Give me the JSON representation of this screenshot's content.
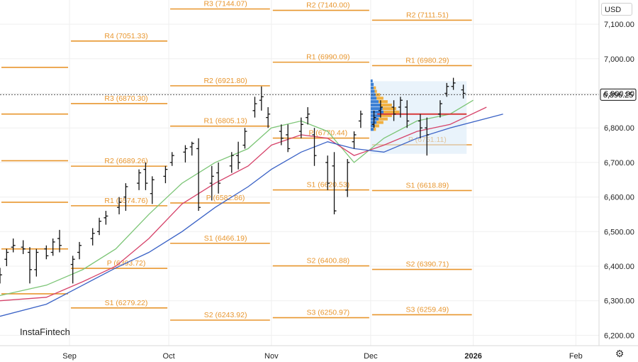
{
  "currency_label": "USD",
  "brand": "InstaFintech",
  "settings_icon": "settings-icon",
  "colors": {
    "pivot": "#e8962e",
    "ema_fast": "#7cc576",
    "ema_mid": "#d6436a",
    "ema_slow": "#3a62c6",
    "poc": "#d73b3b",
    "profile_blue": "#3b7fd4",
    "profile_orange": "#f0b040",
    "value_area": "#d7e9f7"
  },
  "chart_data": {
    "type": "line",
    "title": "",
    "ylim": [
      6170,
      7170
    ],
    "y_ticks": [
      "7,100.00",
      "7,000.00",
      "6,900.00",
      "6,800.00",
      "6,700.00",
      "6,600.00",
      "6,500.00",
      "6,400.00",
      "6,300.00",
      "6,200.00"
    ],
    "y_tick_values": [
      7100,
      7000,
      6900,
      6800,
      6700,
      6600,
      6500,
      6400,
      6300,
      6200
    ],
    "x_ticks": [
      "Sep",
      "Oct",
      "Nov",
      "Dec",
      "2026",
      "Feb"
    ],
    "x_tick_dates": [
      "2025-09-01",
      "2025-10-01",
      "2025-11-01",
      "2025-12-01",
      "2026-01-01",
      "2026-02-01"
    ],
    "xlim": [
      "2025-08-11",
      "2026-02-08"
    ],
    "last_price": "6,896.25",
    "last_price_value": 6896.25,
    "pivot_periods": [
      {
        "from": "2025-08-11",
        "to": "2025-09-01",
        "levels": [
          {
            "label": "",
            "value": 6975
          },
          {
            "label": "",
            "value": 6840
          },
          {
            "label": "",
            "value": 6705
          },
          {
            "label": "",
            "value": 6585
          },
          {
            "label": "",
            "value": 6450
          },
          {
            "label": "",
            "value": 6320
          }
        ]
      },
      {
        "from": "2025-09-01",
        "to": "2025-10-01",
        "levels": [
          {
            "label": "R4 (7051.33)",
            "value": 7051.33
          },
          {
            "label": "R3 (6870.30)",
            "value": 6870.3
          },
          {
            "label": "R2 (6689.26)",
            "value": 6689.26
          },
          {
            "label": "R1 (6574.76)",
            "value": 6574.76
          },
          {
            "label": "P (6393.72)",
            "value": 6393.72
          },
          {
            "label": "S1 (6279.22)",
            "value": 6279.22
          }
        ]
      },
      {
        "from": "2025-10-01",
        "to": "2025-11-01",
        "levels": [
          {
            "label": "R3 (7144.07)",
            "value": 7144.07
          },
          {
            "label": "R2 (6921.80)",
            "value": 6921.8
          },
          {
            "label": "R1 (6805.13)",
            "value": 6805.13
          },
          {
            "label": "P (6582.86)",
            "value": 6582.86
          },
          {
            "label": "S1 (6466.19)",
            "value": 6466.19
          },
          {
            "label": "S2 (6243.92)",
            "value": 6243.92
          }
        ]
      },
      {
        "from": "2025-11-01",
        "to": "2025-12-01",
        "levels": [
          {
            "label": "R2 (7140.00)",
            "value": 7140.0
          },
          {
            "label": "R1 (6990.09)",
            "value": 6990.09
          },
          {
            "label": "P (6770.44)",
            "value": 6770.44
          },
          {
            "label": "S1 (6620.53)",
            "value": 6620.53
          },
          {
            "label": "S2 (6400.88)",
            "value": 6400.88
          },
          {
            "label": "S3 (6250.97)",
            "value": 6250.97
          }
        ]
      },
      {
        "from": "2025-12-01",
        "to": "2026-01-01",
        "levels": [
          {
            "label": "R2 (7111.51)",
            "value": 7111.51
          },
          {
            "label": "R1 (6980.29)",
            "value": 6980.29
          },
          {
            "label": "P (6751.11)",
            "value": 6751.11
          },
          {
            "label": "S1 (6618.89)",
            "value": 6618.89
          },
          {
            "label": "S2 (6390.71)",
            "value": 6390.71
          },
          {
            "label": "S3 (6259.49)",
            "value": 6259.49
          }
        ]
      }
    ],
    "ohlc": [
      {
        "date": "2025-08-11",
        "o": 6365,
        "h": 6395,
        "l": 6350,
        "c": 6375
      },
      {
        "date": "2025-08-13",
        "o": 6420,
        "h": 6450,
        "l": 6400,
        "c": 6440
      },
      {
        "date": "2025-08-15",
        "o": 6455,
        "h": 6480,
        "l": 6440,
        "c": 6460
      },
      {
        "date": "2025-08-18",
        "o": 6455,
        "h": 6475,
        "l": 6435,
        "c": 6450
      },
      {
        "date": "2025-08-20",
        "o": 6440,
        "h": 6455,
        "l": 6350,
        "c": 6390
      },
      {
        "date": "2025-08-22",
        "o": 6390,
        "h": 6450,
        "l": 6370,
        "c": 6440
      },
      {
        "date": "2025-08-25",
        "o": 6450,
        "h": 6460,
        "l": 6420,
        "c": 6430
      },
      {
        "date": "2025-08-27",
        "o": 6440,
        "h": 6480,
        "l": 6430,
        "c": 6470
      },
      {
        "date": "2025-08-29",
        "o": 6480,
        "h": 6505,
        "l": 6440,
        "c": 6460
      },
      {
        "date": "2025-09-02",
        "o": 6405,
        "h": 6430,
        "l": 6350,
        "c": 6420
      },
      {
        "date": "2025-09-04",
        "o": 6440,
        "h": 6470,
        "l": 6420,
        "c": 6460
      },
      {
        "date": "2025-09-08",
        "o": 6480,
        "h": 6510,
        "l": 6460,
        "c": 6495
      },
      {
        "date": "2025-09-10",
        "o": 6500,
        "h": 6540,
        "l": 6490,
        "c": 6530
      },
      {
        "date": "2025-09-12",
        "o": 6540,
        "h": 6560,
        "l": 6520,
        "c": 6545
      },
      {
        "date": "2025-09-16",
        "o": 6570,
        "h": 6600,
        "l": 6550,
        "c": 6585
      },
      {
        "date": "2025-09-18",
        "o": 6600,
        "h": 6640,
        "l": 6560,
        "c": 6630
      },
      {
        "date": "2025-09-22",
        "o": 6640,
        "h": 6680,
        "l": 6620,
        "c": 6670
      },
      {
        "date": "2025-09-24",
        "o": 6680,
        "h": 6700,
        "l": 6620,
        "c": 6640
      },
      {
        "date": "2025-09-26",
        "o": 6610,
        "h": 6660,
        "l": 6580,
        "c": 6650
      },
      {
        "date": "2025-09-30",
        "o": 6660,
        "h": 6690,
        "l": 6640,
        "c": 6680
      },
      {
        "date": "2025-10-02",
        "o": 6700,
        "h": 6730,
        "l": 6690,
        "c": 6720
      },
      {
        "date": "2025-10-06",
        "o": 6730,
        "h": 6750,
        "l": 6700,
        "c": 6740
      },
      {
        "date": "2025-10-08",
        "o": 6745,
        "h": 6760,
        "l": 6720,
        "c": 6755
      },
      {
        "date": "2025-10-10",
        "o": 6740,
        "h": 6770,
        "l": 6560,
        "c": 6570
      },
      {
        "date": "2025-10-14",
        "o": 6640,
        "h": 6690,
        "l": 6590,
        "c": 6660
      },
      {
        "date": "2025-10-16",
        "o": 6670,
        "h": 6700,
        "l": 6610,
        "c": 6640
      },
      {
        "date": "2025-10-20",
        "o": 6690,
        "h": 6730,
        "l": 6670,
        "c": 6720
      },
      {
        "date": "2025-10-22",
        "o": 6720,
        "h": 6760,
        "l": 6680,
        "c": 6700
      },
      {
        "date": "2025-10-24",
        "o": 6750,
        "h": 6800,
        "l": 6740,
        "c": 6790
      },
      {
        "date": "2025-10-27",
        "o": 6850,
        "h": 6890,
        "l": 6830,
        "c": 6870
      },
      {
        "date": "2025-10-29",
        "o": 6880,
        "h": 6920,
        "l": 6850,
        "c": 6890
      },
      {
        "date": "2025-10-31",
        "o": 6830,
        "h": 6860,
        "l": 6800,
        "c": 6840
      },
      {
        "date": "2025-11-04",
        "o": 6790,
        "h": 6810,
        "l": 6750,
        "c": 6770
      },
      {
        "date": "2025-11-06",
        "o": 6780,
        "h": 6810,
        "l": 6730,
        "c": 6740
      },
      {
        "date": "2025-11-10",
        "o": 6790,
        "h": 6830,
        "l": 6770,
        "c": 6810
      },
      {
        "date": "2025-11-12",
        "o": 6830,
        "h": 6860,
        "l": 6810,
        "c": 6840
      },
      {
        "date": "2025-11-14",
        "o": 6780,
        "h": 6800,
        "l": 6690,
        "c": 6720
      },
      {
        "date": "2025-11-18",
        "o": 6700,
        "h": 6720,
        "l": 6620,
        "c": 6640
      },
      {
        "date": "2025-11-20",
        "o": 6690,
        "h": 6730,
        "l": 6550,
        "c": 6560
      },
      {
        "date": "2025-11-24",
        "o": 6620,
        "h": 6710,
        "l": 6600,
        "c": 6700
      },
      {
        "date": "2025-11-26",
        "o": 6760,
        "h": 6790,
        "l": 6740,
        "c": 6780
      },
      {
        "date": "2025-11-28",
        "o": 6820,
        "h": 6850,
        "l": 6800,
        "c": 6840
      },
      {
        "date": "2025-12-02",
        "o": 6810,
        "h": 6850,
        "l": 6800,
        "c": 6830
      },
      {
        "date": "2025-12-04",
        "o": 6850,
        "h": 6880,
        "l": 6830,
        "c": 6860
      },
      {
        "date": "2025-12-08",
        "o": 6860,
        "h": 6880,
        "l": 6820,
        "c": 6840
      },
      {
        "date": "2025-12-10",
        "o": 6860,
        "h": 6890,
        "l": 6830,
        "c": 6880
      },
      {
        "date": "2025-12-12",
        "o": 6860,
        "h": 6880,
        "l": 6800,
        "c": 6820
      },
      {
        "date": "2025-12-16",
        "o": 6820,
        "h": 6840,
        "l": 6770,
        "c": 6800
      },
      {
        "date": "2025-12-18",
        "o": 6800,
        "h": 6830,
        "l": 6720,
        "c": 6780
      },
      {
        "date": "2025-12-22",
        "o": 6840,
        "h": 6880,
        "l": 6830,
        "c": 6870
      },
      {
        "date": "2025-12-24",
        "o": 6900,
        "h": 6930,
        "l": 6890,
        "c": 6920
      },
      {
        "date": "2025-12-26",
        "o": 6920,
        "h": 6945,
        "l": 6910,
        "c": 6930
      },
      {
        "date": "2025-12-29",
        "o": 6910,
        "h": 6925,
        "l": 6885,
        "c": 6900
      }
    ],
    "series": [
      {
        "key": "ema_fast",
        "points": [
          [
            "2025-08-11",
            6315
          ],
          [
            "2025-08-25",
            6345
          ],
          [
            "2025-09-05",
            6390
          ],
          [
            "2025-09-15",
            6450
          ],
          [
            "2025-09-25",
            6550
          ],
          [
            "2025-10-05",
            6640
          ],
          [
            "2025-10-15",
            6700
          ],
          [
            "2025-10-25",
            6740
          ],
          [
            "2025-11-01",
            6800
          ],
          [
            "2025-11-10",
            6820
          ],
          [
            "2025-11-18",
            6790
          ],
          [
            "2025-11-26",
            6700
          ],
          [
            "2025-12-05",
            6770
          ],
          [
            "2025-12-15",
            6820
          ],
          [
            "2025-12-25",
            6840
          ],
          [
            "2026-01-01",
            6880
          ]
        ]
      },
      {
        "key": "ema_mid",
        "points": [
          [
            "2025-08-11",
            6300
          ],
          [
            "2025-08-25",
            6310
          ],
          [
            "2025-09-05",
            6355
          ],
          [
            "2025-09-15",
            6400
          ],
          [
            "2025-09-25",
            6480
          ],
          [
            "2025-10-05",
            6580
          ],
          [
            "2025-10-15",
            6640
          ],
          [
            "2025-10-25",
            6690
          ],
          [
            "2025-11-01",
            6750
          ],
          [
            "2025-11-10",
            6780
          ],
          [
            "2025-11-18",
            6770
          ],
          [
            "2025-11-26",
            6720
          ],
          [
            "2025-12-05",
            6750
          ],
          [
            "2025-12-15",
            6790
          ],
          [
            "2025-12-25",
            6810
          ],
          [
            "2026-01-05",
            6860
          ]
        ]
      },
      {
        "key": "ema_slow",
        "points": [
          [
            "2025-08-11",
            6255
          ],
          [
            "2025-08-25",
            6290
          ],
          [
            "2025-09-05",
            6345
          ],
          [
            "2025-09-15",
            6395
          ],
          [
            "2025-09-25",
            6440
          ],
          [
            "2025-10-05",
            6500
          ],
          [
            "2025-10-15",
            6570
          ],
          [
            "2025-10-25",
            6630
          ],
          [
            "2025-11-01",
            6680
          ],
          [
            "2025-11-10",
            6730
          ],
          [
            "2025-11-18",
            6760
          ],
          [
            "2025-11-26",
            6740
          ],
          [
            "2025-12-05",
            6730
          ],
          [
            "2025-12-15",
            6770
          ],
          [
            "2025-12-25",
            6800
          ],
          [
            "2026-01-10",
            6840
          ]
        ]
      }
    ],
    "value_area": {
      "from": "2025-12-01",
      "to": "2025-12-30",
      "low": 6725,
      "high": 6935
    },
    "poc": {
      "from": "2025-12-03",
      "to": "2025-12-30",
      "value": 6840
    },
    "volume_profile": [
      {
        "price": 6935,
        "blue": 2,
        "orange": 0
      },
      {
        "price": 6925,
        "blue": 3,
        "orange": 0
      },
      {
        "price": 6915,
        "blue": 3,
        "orange": 1
      },
      {
        "price": 6905,
        "blue": 4,
        "orange": 1
      },
      {
        "price": 6895,
        "blue": 5,
        "orange": 2
      },
      {
        "price": 6885,
        "blue": 6,
        "orange": 3
      },
      {
        "price": 6875,
        "blue": 8,
        "orange": 4
      },
      {
        "price": 6865,
        "blue": 10,
        "orange": 5
      },
      {
        "price": 6855,
        "blue": 12,
        "orange": 6
      },
      {
        "price": 6845,
        "blue": 13,
        "orange": 7
      },
      {
        "price": 6835,
        "blue": 10,
        "orange": 5
      },
      {
        "price": 6825,
        "blue": 8,
        "orange": 4
      },
      {
        "price": 6815,
        "blue": 6,
        "orange": 3
      },
      {
        "price": 6805,
        "blue": 4,
        "orange": 2
      },
      {
        "price": 6795,
        "blue": 3,
        "orange": 1
      }
    ]
  }
}
